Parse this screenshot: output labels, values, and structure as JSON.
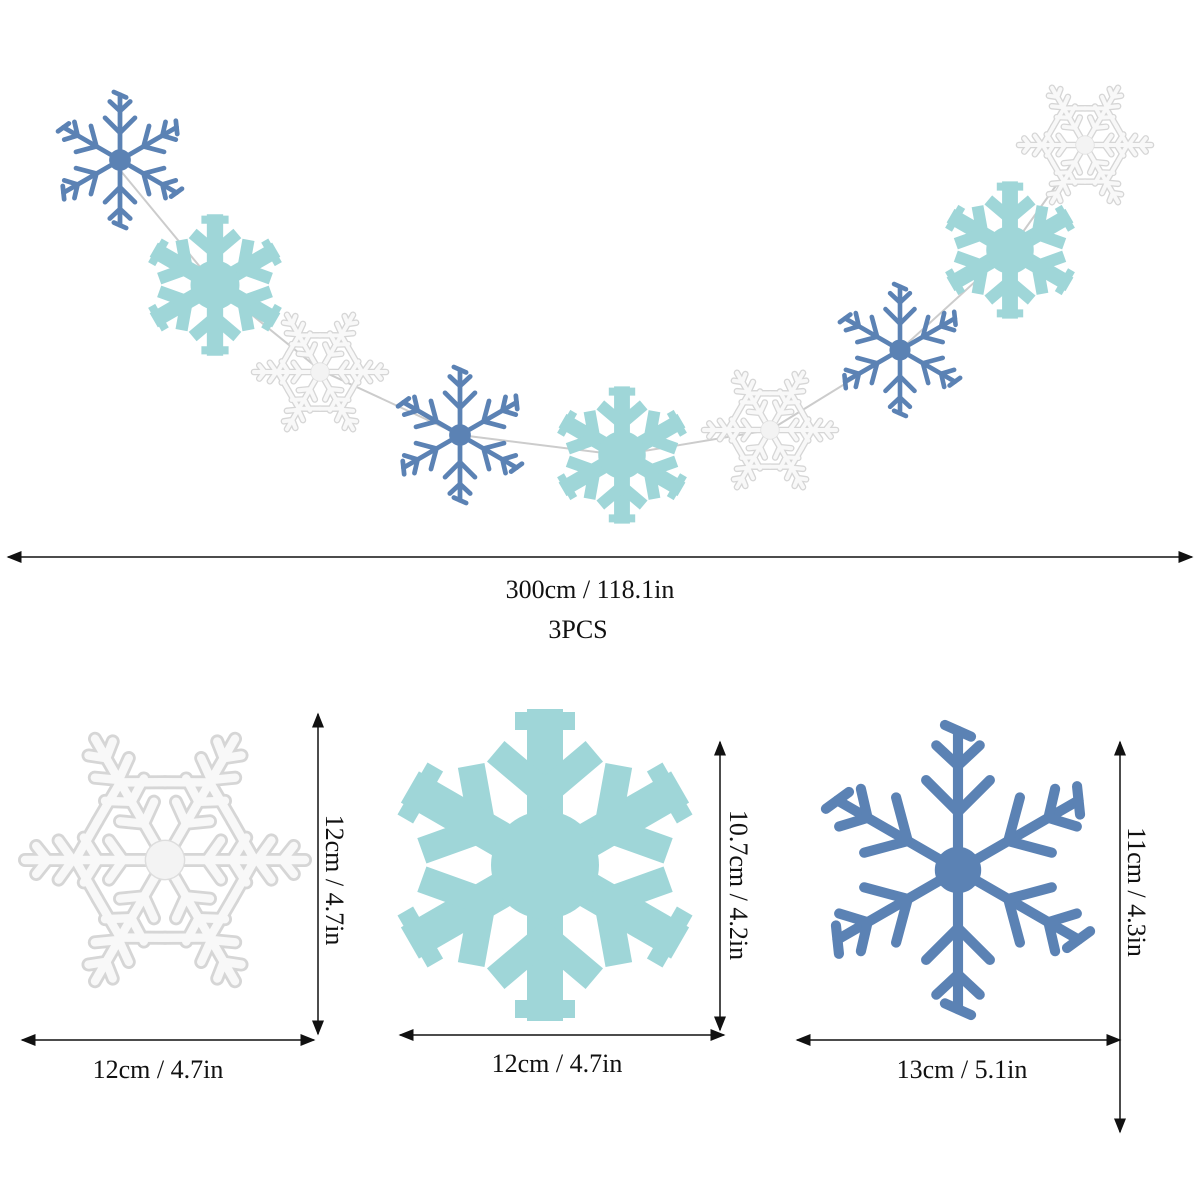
{
  "garland": {
    "length": "300cm / 118.1in",
    "quantity": "3PCS"
  },
  "items": [
    {
      "width": "12cm / 4.7in",
      "height": "12cm / 4.7in"
    },
    {
      "width": "12cm / 4.7in",
      "height": "10.7cm / 4.2in"
    },
    {
      "width": "13cm / 5.1in",
      "height": "11cm / 4.3in"
    }
  ]
}
